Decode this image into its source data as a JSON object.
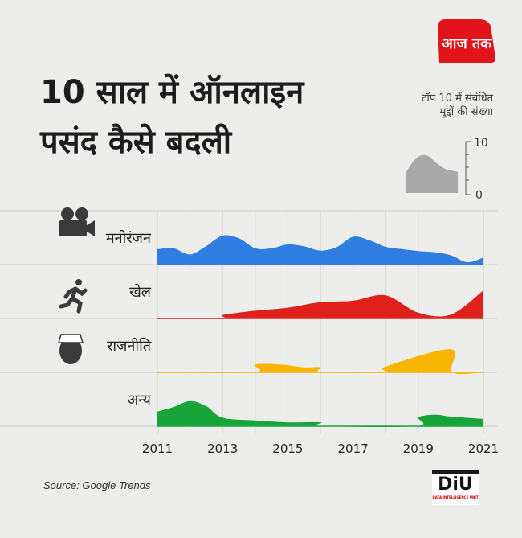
{
  "logo": {
    "text": "आज तक",
    "color": "#e2141b"
  },
  "title": {
    "line1": "10 साल में ऑनलाइन",
    "line2": "पसंद कैसे बदली"
  },
  "legend": {
    "caption_line1": "टॉप 10 में संबंधित",
    "caption_line2": "मुद्दों की संख्या",
    "max_label": "10",
    "min_label": "0"
  },
  "source": "Source: Google Trends",
  "diu": {
    "main": "DiU",
    "sub": "DATA INTELLIGENCE UNIT"
  },
  "chart_data": {
    "type": "area",
    "x_ticks": [
      "2011",
      "2013",
      "2015",
      "2017",
      "2019",
      "2021"
    ],
    "ylim": [
      0,
      10
    ],
    "grid": true,
    "series": [
      {
        "name": "मनोरंजन",
        "icon": "film-camera-icon",
        "color": "#2f7de1",
        "points": [
          [
            2011,
            4
          ],
          [
            2011.5,
            4.2
          ],
          [
            2012,
            2.6
          ],
          [
            2012.5,
            4.8
          ],
          [
            2013,
            7.5
          ],
          [
            2013.5,
            6.8
          ],
          [
            2014,
            4.2
          ],
          [
            2014.5,
            4.2
          ],
          [
            2015,
            5.2
          ],
          [
            2015.5,
            4.7
          ],
          [
            2016,
            3.6
          ],
          [
            2016.5,
            4.5
          ],
          [
            2017,
            7.2
          ],
          [
            2017.5,
            6.3
          ],
          [
            2018,
            4.6
          ],
          [
            2018.5,
            4
          ],
          [
            2019,
            3.5
          ],
          [
            2019.5,
            3.2
          ],
          [
            2020,
            2.4
          ],
          [
            2020.5,
            0.6
          ],
          [
            2021,
            1.8
          ]
        ]
      },
      {
        "name": "खेल",
        "icon": "running-person-icon",
        "color": "#e0201a",
        "points": [
          [
            2011,
            0
          ],
          [
            2012.95,
            0
          ],
          [
            2013,
            0.9
          ],
          [
            2014,
            2
          ],
          [
            2015,
            2.8
          ],
          [
            2016,
            4.2
          ],
          [
            2017,
            4.6
          ],
          [
            2018,
            6
          ],
          [
            2019,
            1.5
          ],
          [
            2020,
            1
          ],
          [
            2021,
            7.3
          ]
        ]
      },
      {
        "name": "राजनीति",
        "icon": "politician-icon",
        "color": "#f7b400",
        "points": [
          [
            2011,
            0
          ],
          [
            2013.95,
            0
          ],
          [
            2014,
            2
          ],
          [
            2014.8,
            2
          ],
          [
            2015.5,
            1.3
          ],
          [
            2016,
            1.3
          ],
          [
            2016.05,
            0
          ],
          [
            2017.95,
            0
          ],
          [
            2018,
            1.5
          ],
          [
            2020,
            6
          ],
          [
            2020.05,
            0
          ],
          [
            2021,
            0
          ]
        ]
      },
      {
        "name": "अन्य",
        "icon": "",
        "color": "#17a53a",
        "points": [
          [
            2011,
            3.8
          ],
          [
            2011.5,
            5
          ],
          [
            2012,
            6.5
          ],
          [
            2012.5,
            5.2
          ],
          [
            2013,
            2.2
          ],
          [
            2014,
            1.5
          ],
          [
            2015,
            1
          ],
          [
            2016,
            1
          ],
          [
            2016.05,
            0
          ],
          [
            2018.95,
            0
          ],
          [
            2019,
            2.3
          ],
          [
            2019.5,
            3
          ],
          [
            2020,
            2.5
          ],
          [
            2021,
            1.9
          ]
        ]
      }
    ]
  }
}
